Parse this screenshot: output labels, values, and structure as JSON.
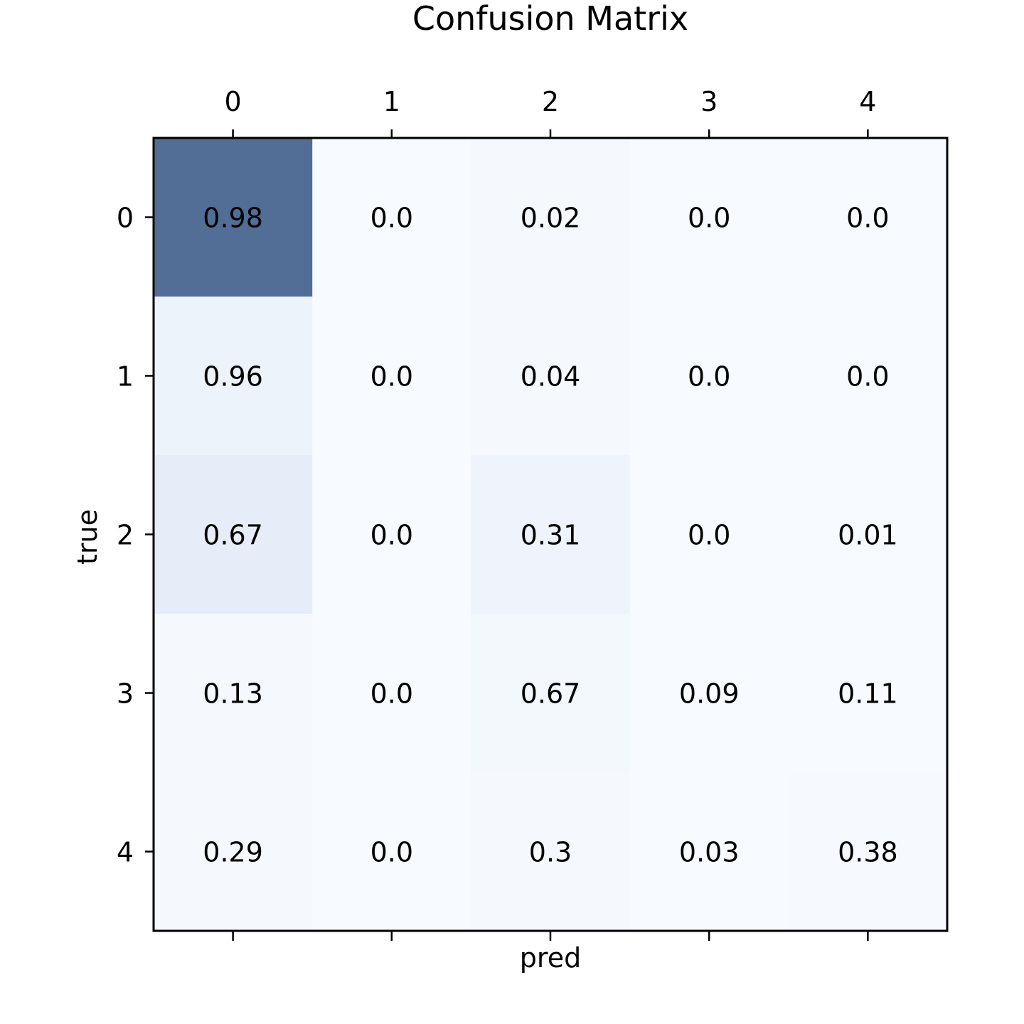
{
  "chart_data": {
    "type": "heatmap",
    "title": "Confusion Matrix",
    "xlabel": "pred",
    "ylabel": "true",
    "x_categories": [
      "0",
      "1",
      "2",
      "3",
      "4"
    ],
    "y_categories": [
      "0",
      "1",
      "2",
      "3",
      "4"
    ],
    "x_tick_position": "top",
    "values": [
      [
        0.98,
        0.0,
        0.02,
        0.0,
        0.0
      ],
      [
        0.96,
        0.0,
        0.04,
        0.0,
        0.0
      ],
      [
        0.67,
        0.0,
        0.31,
        0.0,
        0.01
      ],
      [
        0.13,
        0.0,
        0.67,
        0.09,
        0.11
      ],
      [
        0.29,
        0.0,
        0.3,
        0.03,
        0.38
      ]
    ],
    "cell_labels": [
      [
        "0.98",
        "0.0",
        "0.02",
        "0.0",
        "0.0"
      ],
      [
        "0.96",
        "0.0",
        "0.04",
        "0.0",
        "0.0"
      ],
      [
        "0.67",
        "0.0",
        "0.31",
        "0.0",
        "0.01"
      ],
      [
        "0.13",
        "0.0",
        "0.67",
        "0.09",
        "0.11"
      ],
      [
        "0.29",
        "0.0",
        "0.3",
        "0.03",
        "0.38"
      ]
    ],
    "colormap": {
      "low": "#f7fbff",
      "high": "#526e96"
    },
    "cell_colors": [
      [
        "#526e96",
        "#f7fbff",
        "#f5f8fd",
        "#f7fbff",
        "#f7fbff"
      ],
      [
        "#edf3fb",
        "#f7fbff",
        "#f5f9fd",
        "#f7fbff",
        "#f7fbff"
      ],
      [
        "#e6edf8",
        "#f7fbff",
        "#eff3fb",
        "#f7fbff",
        "#f7fbff"
      ],
      [
        "#f5f9fe",
        "#f7fbff",
        "#f3f8fd",
        "#f7fbff",
        "#f7fbff"
      ],
      [
        "#f5f9fe",
        "#f7fbff",
        "#f5f9fd",
        "#f7fbff",
        "#f6f9fd"
      ]
    ],
    "grid": false,
    "legend": "none"
  }
}
